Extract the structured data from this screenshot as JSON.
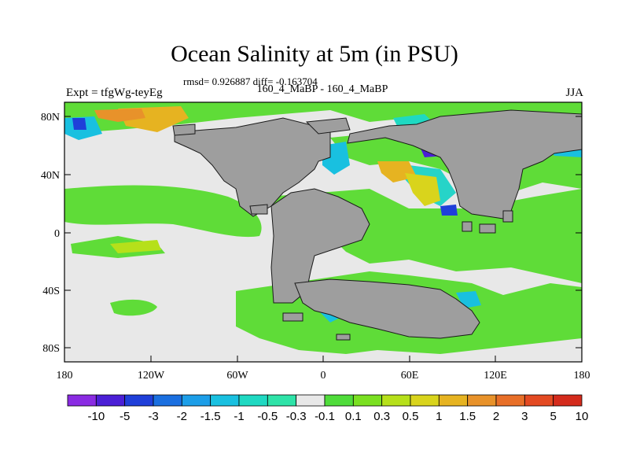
{
  "title": "Ocean Salinity at 5m (in PSU)",
  "stats": "rmsd= 0.926887 diff= -0.163704",
  "subtitle": "160_4_MaBP - 160_4_MaBP",
  "left_label": "Expt = tfgWg-teyEg",
  "right_label": "JJA",
  "axes": {
    "lat_ticks": [
      "80N",
      "40N",
      "0",
      "40S",
      "80S"
    ],
    "lon_ticks": [
      "180",
      "120W",
      "60W",
      "0",
      "60E",
      "120E",
      "180"
    ]
  },
  "colorbar": {
    "labels": [
      "-10",
      "-5",
      "-3",
      "-2",
      "-1.5",
      "-1",
      "-0.5",
      "-0.3",
      "-0.1",
      "0.1",
      "0.3",
      "0.5",
      "1",
      "1.5",
      "2",
      "3",
      "5",
      "10"
    ],
    "colors": [
      "#8a2be2",
      "#4b1fd6",
      "#1f3fd9",
      "#1a6fe0",
      "#1c9ee8",
      "#19c0e0",
      "#1fd9c2",
      "#2ee3a8",
      "#e8e8e8",
      "#4fdc3a",
      "#7ae021",
      "#b6e01a",
      "#d9d41c",
      "#e6b321",
      "#e8922a",
      "#e86f28",
      "#e34a22",
      "#d42b1c"
    ]
  },
  "map_colors": {
    "land": "#9e9e9e",
    "neutral_ocean": "#e8e8e8",
    "positive_low": "#5fdc38",
    "negative_low": "#26d4c8"
  }
}
